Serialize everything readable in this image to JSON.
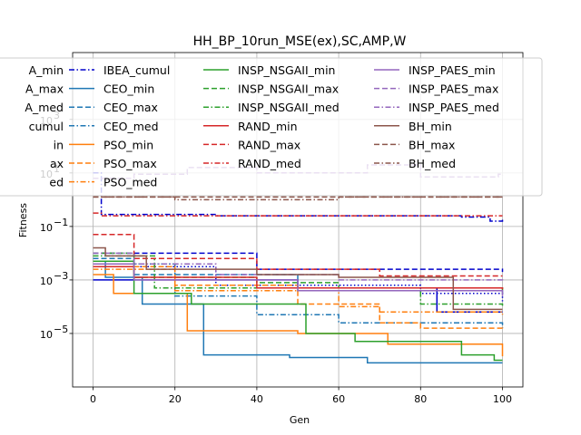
{
  "chart_data": {
    "type": "line",
    "title": "HH_BP_10run_MSE(ex),SC,AMP,W",
    "xlabel": "Gen",
    "ylabel": "Fitness",
    "xlim": [
      -5,
      105
    ],
    "xticks": [
      0,
      20,
      40,
      60,
      80,
      100
    ],
    "x_tick_labels": [
      "0",
      "20",
      "40",
      "60",
      "80",
      "100"
    ],
    "y_scale": "log",
    "ylim_log10": [
      -7,
      5.5
    ],
    "yticks_log10": [
      -5,
      -3,
      -1,
      1,
      3
    ],
    "y_tick_labels": [
      "10",
      "10",
      "10",
      "10",
      "10"
    ],
    "y_tick_exponents": [
      "−5",
      "−3",
      "−1",
      "1",
      "3"
    ],
    "grid": true,
    "legend_location": "upper-center, overlapping plot",
    "legend_columns": [
      [
        "A_min",
        "A_max",
        "A_med",
        "cumul",
        "in",
        "ax",
        "ed"
      ],
      [
        "IBEA_cumul",
        "CEO_min",
        "CEO_max",
        "CEO_med",
        "PSO_min",
        "PSO_max",
        "PSO_med"
      ],
      [
        "INSP_NSGAII_min",
        "INSP_NSGAII_max",
        "INSP_NSGAII_med",
        "RAND_min",
        "RAND_max",
        "RAND_med"
      ],
      [
        "INSP_PAES_min",
        "INSP_PAES_max",
        "INSP_PAES_med",
        "BH_min",
        "BH_max",
        "BH_med"
      ]
    ],
    "series": [
      {
        "name": "IBEA_min",
        "color": "#0000cc",
        "style": "solid",
        "points": [
          [
            0,
            -3.0
          ],
          [
            50,
            -3.3
          ],
          [
            84,
            -4.2
          ],
          [
            100,
            -4.2
          ]
        ]
      },
      {
        "name": "IBEA_max",
        "color": "#0000cc",
        "style": "dashed",
        "points": [
          [
            0,
            -2.0
          ],
          [
            40,
            -2.6
          ],
          [
            100,
            -2.7
          ]
        ]
      },
      {
        "name": "IBEA_med",
        "color": "#0000cc",
        "style": "dotted",
        "points": [
          [
            0,
            -2.5
          ],
          [
            30,
            -3.2
          ],
          [
            80,
            -3.5
          ],
          [
            100,
            -3.8
          ]
        ]
      },
      {
        "name": "IBEA_cumul",
        "color": "#0000cc",
        "style": "dashdot",
        "points": [
          [
            0,
            1.0
          ],
          [
            2,
            -0.55
          ],
          [
            30,
            -0.6
          ],
          [
            60,
            -0.6
          ],
          [
            90,
            -0.65
          ],
          [
            97,
            -0.8
          ],
          [
            100,
            -0.75
          ]
        ]
      },
      {
        "name": "CEO_min",
        "color": "#1f77b4",
        "style": "solid",
        "points": [
          [
            0,
            -2.3
          ],
          [
            3,
            -2.9
          ],
          [
            12,
            -3.9
          ],
          [
            27,
            -5.8
          ],
          [
            48,
            -5.9
          ],
          [
            67,
            -6.1
          ],
          [
            100,
            -6.1
          ]
        ]
      },
      {
        "name": "CEO_max",
        "color": "#1f77b4",
        "style": "dashed",
        "points": [
          [
            0,
            -2.2
          ],
          [
            10,
            -2.8
          ],
          [
            50,
            -3.3
          ],
          [
            100,
            -3.5
          ]
        ]
      },
      {
        "name": "CEO_med",
        "color": "#1f77b4",
        "style": "dashdot",
        "points": [
          [
            0,
            -2.4
          ],
          [
            20,
            -3.6
          ],
          [
            40,
            -4.3
          ],
          [
            60,
            -4.6
          ],
          [
            100,
            -4.8
          ]
        ]
      },
      {
        "name": "PSO_min",
        "color": "#ff7f0e",
        "style": "solid",
        "points": [
          [
            0,
            -2.8
          ],
          [
            5,
            -3.5
          ],
          [
            23,
            -4.9
          ],
          [
            50,
            -5.0
          ],
          [
            72,
            -5.4
          ],
          [
            99,
            -5.4
          ],
          [
            100,
            -5.85
          ]
        ]
      },
      {
        "name": "PSO_max",
        "color": "#ff7f0e",
        "style": "dashed",
        "points": [
          [
            0,
            -2.5
          ],
          [
            20,
            -3.2
          ],
          [
            50,
            -3.9
          ],
          [
            70,
            -4.6
          ],
          [
            80,
            -4.8
          ],
          [
            100,
            -4.85
          ]
        ]
      },
      {
        "name": "PSO_med",
        "color": "#ff7f0e",
        "style": "dashdot",
        "points": [
          [
            0,
            -2.6
          ],
          [
            20,
            -3.4
          ],
          [
            60,
            -4.0
          ],
          [
            70,
            -4.2
          ],
          [
            100,
            -4.3
          ]
        ]
      },
      {
        "name": "INSP_NSGAII_min",
        "color": "#2ca02c",
        "style": "solid",
        "points": [
          [
            0,
            -2.3
          ],
          [
            10,
            -3.5
          ],
          [
            24,
            -3.9
          ],
          [
            52,
            -5.0
          ],
          [
            64,
            -5.3
          ],
          [
            90,
            -5.8
          ],
          [
            98,
            -6.0
          ],
          [
            100,
            -6.0
          ]
        ]
      },
      {
        "name": "INSP_NSGAII_max",
        "color": "#2ca02c",
        "style": "dashed",
        "points": [
          [
            0,
            -2.0
          ],
          [
            10,
            -2.9
          ],
          [
            40,
            -3.1
          ],
          [
            60,
            -3.3
          ],
          [
            100,
            -3.5
          ]
        ]
      },
      {
        "name": "INSP_NSGAII_med",
        "color": "#2ca02c",
        "style": "dashdot",
        "points": [
          [
            0,
            -2.1
          ],
          [
            15,
            -3.3
          ],
          [
            50,
            -3.4
          ],
          [
            80,
            -3.9
          ],
          [
            100,
            -4.0
          ]
        ]
      },
      {
        "name": "RAND_min",
        "color": "#d62728",
        "style": "solid",
        "points": [
          [
            0,
            -2.5
          ],
          [
            10,
            -2.9
          ],
          [
            40,
            -3.3
          ],
          [
            100,
            -3.35
          ]
        ]
      },
      {
        "name": "RAND_max",
        "color": "#d62728",
        "style": "dashed",
        "points": [
          [
            0,
            -1.3
          ],
          [
            10,
            -2.2
          ],
          [
            40,
            -2.6
          ],
          [
            70,
            -2.85
          ],
          [
            100,
            -2.85
          ]
        ]
      },
      {
        "name": "RAND_med",
        "color": "#d62728",
        "style": "dashdot",
        "points": [
          [
            0,
            -0.5
          ],
          [
            2,
            -0.6
          ],
          [
            60,
            -0.6
          ],
          [
            100,
            -0.6
          ]
        ]
      },
      {
        "name": "INSP_PAES_min",
        "color": "#9467bd",
        "style": "solid",
        "points": [
          [
            0,
            -2.4
          ],
          [
            10,
            -3.0
          ],
          [
            50,
            -3.4
          ],
          [
            100,
            -3.6
          ]
        ]
      },
      {
        "name": "INSP_PAES_max",
        "color": "#9467bd",
        "style": "dashed",
        "points": [
          [
            0,
            0.8
          ],
          [
            10,
            0.95
          ],
          [
            23,
            1.2
          ],
          [
            40,
            1.0
          ],
          [
            67,
            1.3
          ],
          [
            80,
            0.85
          ],
          [
            99,
            0.95
          ],
          [
            100,
            0.9
          ]
        ]
      },
      {
        "name": "INSP_PAES_med",
        "color": "#9467bd",
        "style": "dashdot",
        "points": [
          [
            0,
            -2.0
          ],
          [
            10,
            -2.4
          ],
          [
            30,
            -2.8
          ],
          [
            60,
            -3.0
          ],
          [
            100,
            -3.1
          ]
        ]
      },
      {
        "name": "BH_min",
        "color": "#8c564b",
        "style": "solid",
        "points": [
          [
            0,
            -1.8
          ],
          [
            3,
            -2.1
          ],
          [
            13,
            -2.6
          ],
          [
            40,
            -2.8
          ],
          [
            60,
            -2.9
          ],
          [
            88,
            -4.1
          ],
          [
            100,
            -4.1
          ]
        ]
      },
      {
        "name": "BH_max",
        "color": "#8c564b",
        "style": "dashed",
        "points": [
          [
            0,
            0.1
          ],
          [
            50,
            0.1
          ],
          [
            60,
            0.1
          ],
          [
            100,
            0.1
          ]
        ]
      },
      {
        "name": "BH_med",
        "color": "#8c564b",
        "style": "dashdot",
        "points": [
          [
            0,
            0.1
          ],
          [
            20,
            0.0
          ],
          [
            60,
            0.1
          ],
          [
            100,
            0.1
          ]
        ]
      }
    ]
  }
}
